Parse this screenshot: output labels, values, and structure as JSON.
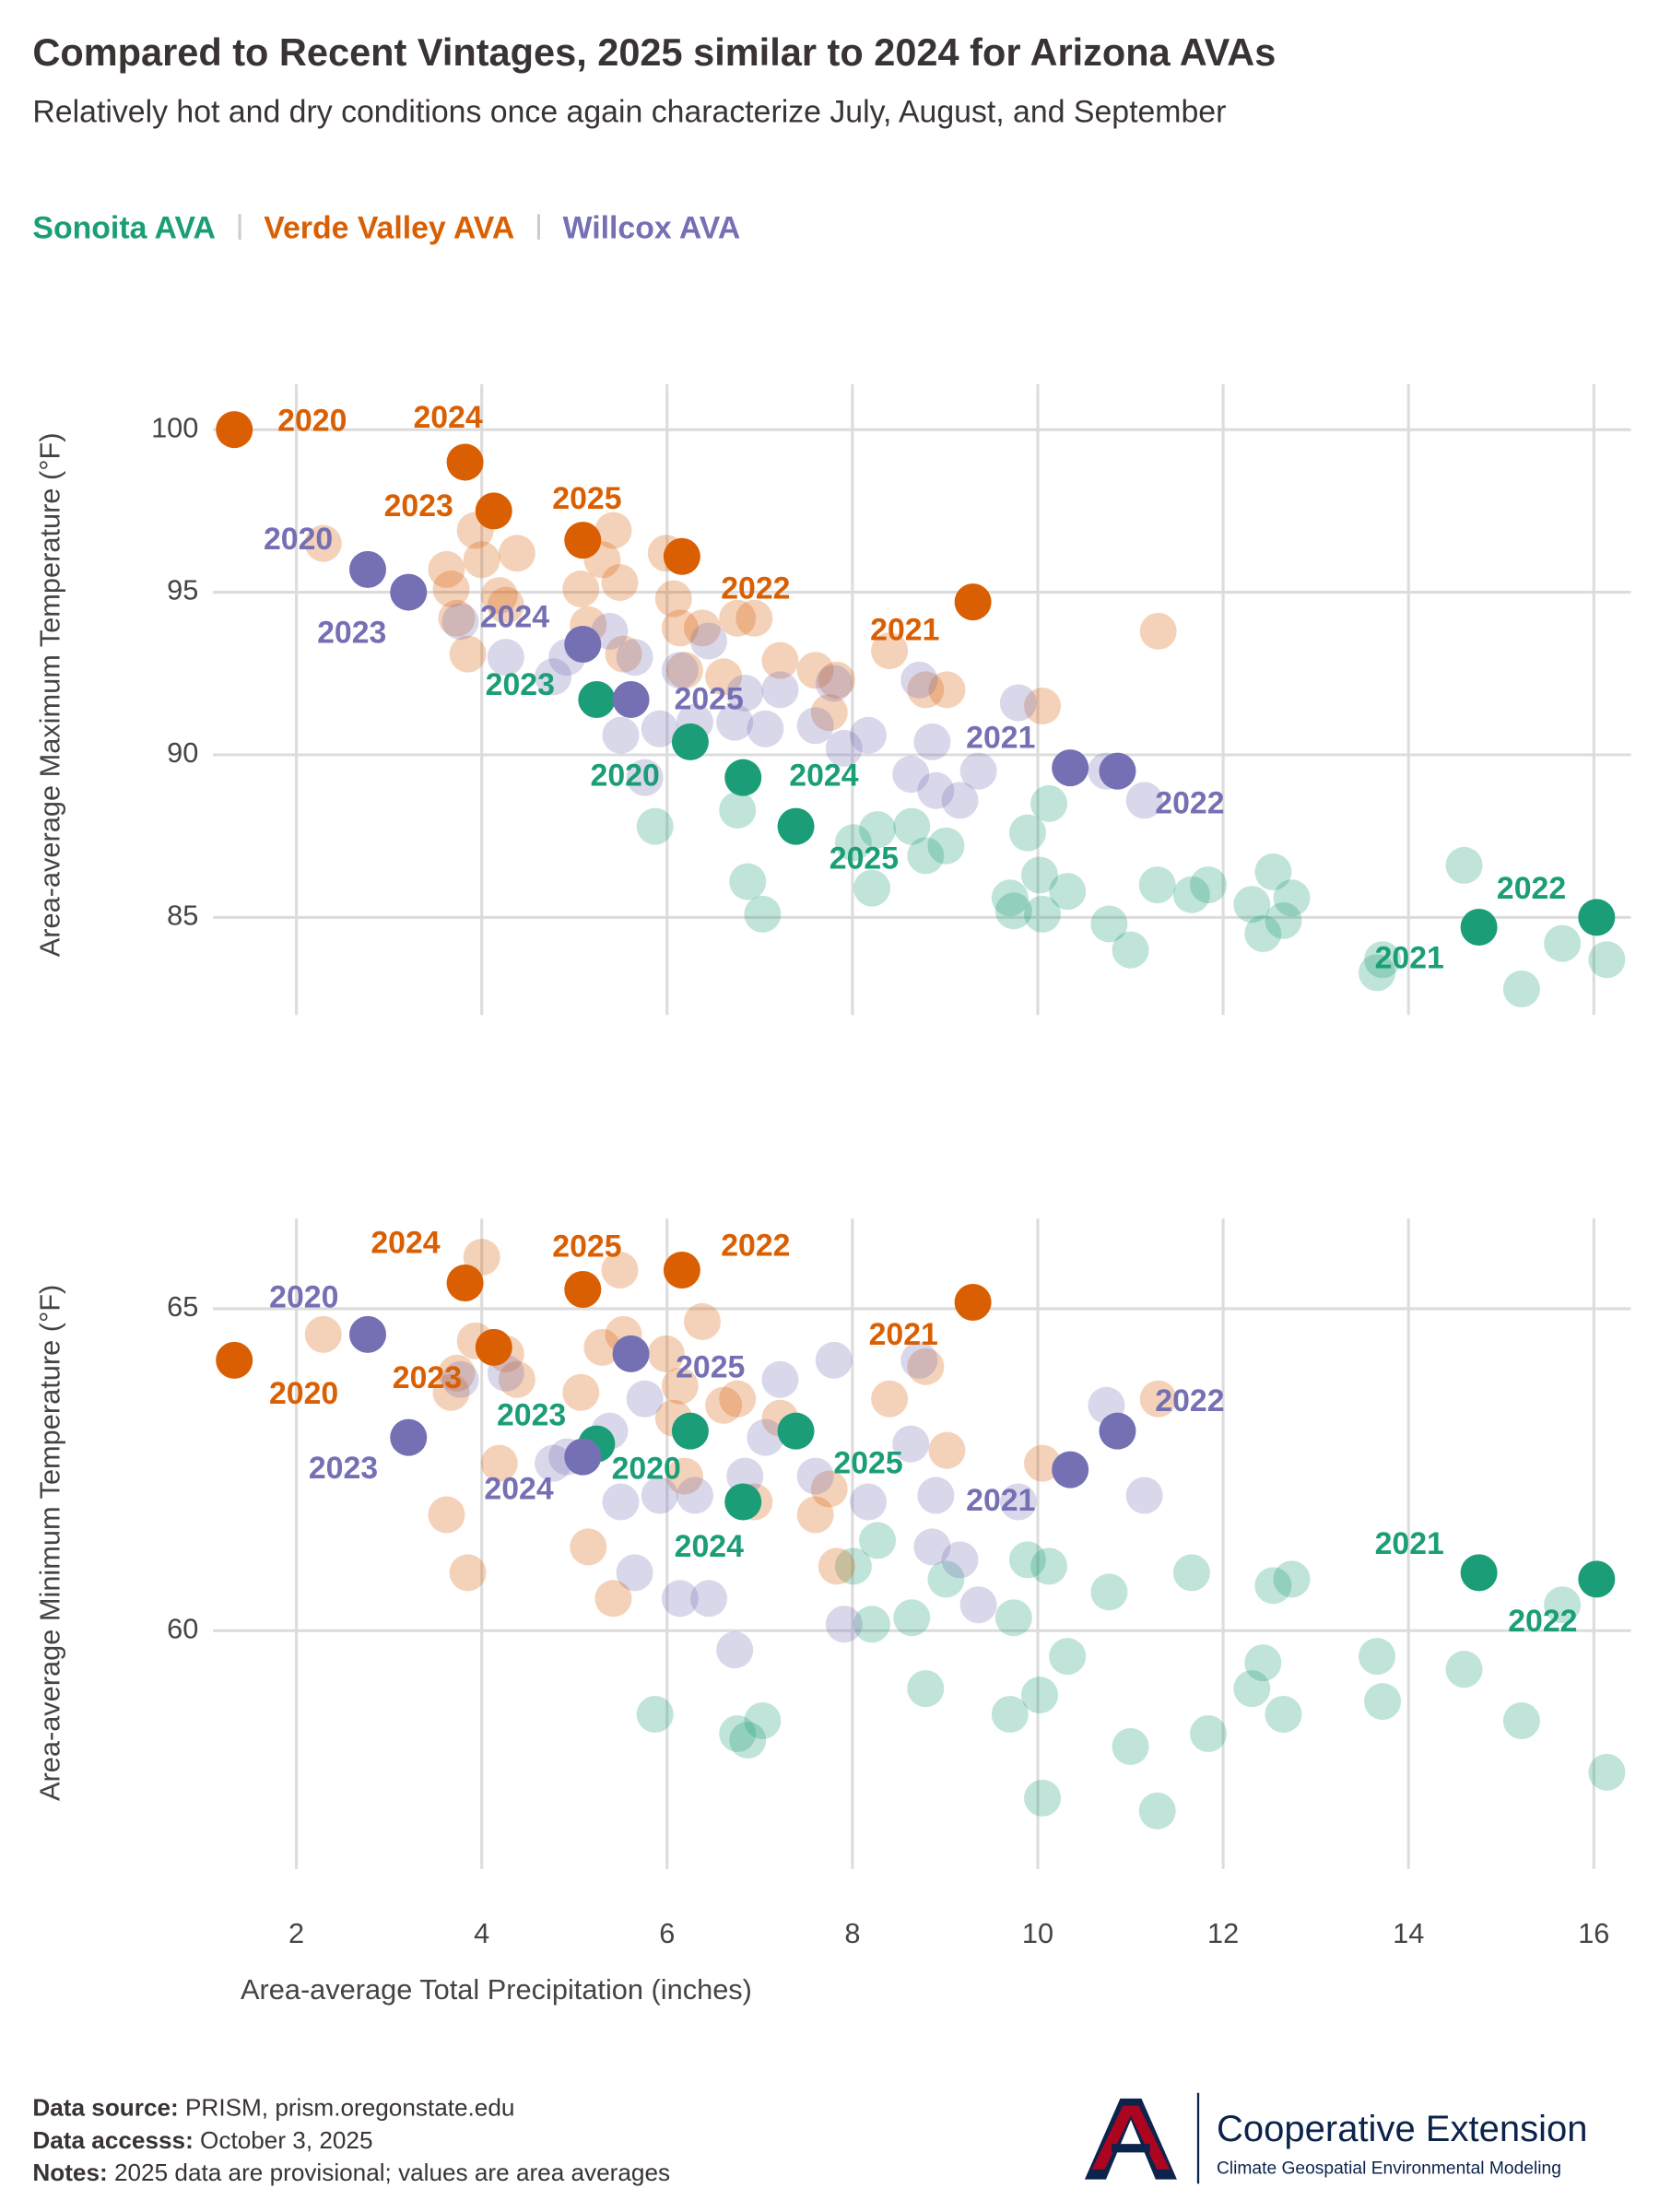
{
  "chart_data": [
    {
      "type": "scatter",
      "title": "Compared to Recent Vintages, 2025 similar to 2024 for Arizona AVAs",
      "subtitle": "Relatively hot and dry conditions once again characterize July, August, and September",
      "ylabel": "Area-average Maximum Temperature (°F)",
      "xlim": [
        1.1,
        16.4
      ],
      "xticks": [
        2,
        4,
        6,
        8,
        10,
        12,
        14,
        16
      ],
      "ylim": [
        82,
        101.4
      ],
      "yticks": [
        85,
        90,
        95,
        100
      ],
      "grid": true,
      "series": [
        {
          "name": "Sonoita AVA",
          "color": "#1b9e77",
          "x": [
            6.25,
            14.76,
            16.03,
            5.24,
            6.82,
            7.39,
            5.87,
            6.76,
            6.87,
            7.03,
            8.01,
            8.21,
            8.27,
            8.64,
            8.79,
            9.01,
            9.7,
            9.74,
            9.89,
            10.02,
            10.05,
            10.12,
            10.32,
            10.77,
            11.0,
            11.29,
            11.66,
            11.84,
            12.31,
            12.43,
            12.54,
            12.65,
            12.74,
            13.66,
            13.72,
            14.6,
            15.22,
            15.66,
            16.14
          ],
          "values": [
            90.4,
            84.7,
            85.0,
            91.7,
            89.3,
            87.8,
            87.8,
            88.3,
            86.1,
            85.1,
            87.3,
            85.9,
            87.7,
            87.8,
            86.9,
            87.2,
            85.6,
            85.2,
            87.6,
            86.3,
            85.1,
            88.5,
            85.8,
            84.8,
            84.0,
            86.0,
            85.7,
            86.0,
            85.4,
            84.5,
            86.4,
            84.9,
            85.6,
            83.3,
            83.7,
            86.6,
            82.8,
            84.2,
            83.7
          ],
          "point_labels": [
            "2020",
            "2021",
            "2022",
            "2023",
            "2024",
            "2025",
            null,
            null,
            null,
            null,
            null,
            null,
            null,
            null,
            null,
            null,
            null,
            null,
            null,
            null,
            null,
            null,
            null,
            null,
            null,
            null,
            null,
            null,
            null,
            null,
            null,
            null,
            null,
            null,
            null,
            null,
            null,
            null,
            null
          ]
        },
        {
          "name": "Verde Valley AVA",
          "color": "#d95f02",
          "x": [
            1.33,
            9.3,
            6.16,
            4.13,
            3.82,
            5.09,
            2.29,
            3.62,
            3.67,
            3.73,
            3.85,
            3.93,
            4.0,
            4.19,
            4.26,
            4.38,
            5.07,
            5.15,
            5.3,
            5.42,
            5.49,
            5.53,
            5.99,
            6.07,
            6.14,
            6.19,
            6.38,
            6.61,
            6.76,
            6.94,
            7.22,
            7.6,
            7.75,
            7.83,
            8.4,
            8.79,
            9.02,
            10.05,
            11.3
          ],
          "values": [
            100.0,
            94.7,
            96.1,
            97.5,
            99.0,
            96.6,
            96.5,
            95.7,
            95.1,
            94.2,
            93.1,
            96.9,
            96.0,
            94.9,
            94.6,
            96.2,
            95.1,
            94.0,
            96.0,
            96.9,
            95.3,
            93.1,
            96.2,
            94.8,
            93.9,
            92.6,
            93.9,
            92.4,
            94.2,
            94.2,
            92.9,
            92.6,
            91.3,
            92.3,
            93.2,
            92.0,
            92.0,
            91.5,
            93.8
          ],
          "point_labels": [
            "2020",
            "2021",
            "2022",
            "2023",
            "2024",
            "2025",
            null,
            null,
            null,
            null,
            null,
            null,
            null,
            null,
            null,
            null,
            null,
            null,
            null,
            null,
            null,
            null,
            null,
            null,
            null,
            null,
            null,
            null,
            null,
            null,
            null,
            null,
            null,
            null,
            null,
            null,
            null,
            null,
            null
          ]
        },
        {
          "name": "Willcox AVA",
          "color": "#7570b3",
          "x": [
            2.77,
            10.35,
            10.86,
            3.21,
            5.09,
            5.61,
            3.77,
            4.26,
            4.77,
            4.92,
            5.38,
            5.5,
            5.65,
            5.76,
            5.92,
            6.14,
            6.3,
            6.45,
            6.73,
            6.84,
            7.06,
            7.22,
            7.6,
            7.8,
            7.91,
            8.17,
            8.63,
            8.72,
            8.86,
            8.9,
            9.16,
            9.36,
            9.79,
            10.74,
            11.15
          ],
          "values": [
            95.7,
            89.6,
            89.5,
            95.0,
            93.4,
            91.7,
            94.1,
            93.0,
            92.4,
            93.0,
            93.8,
            90.6,
            93.0,
            89.3,
            90.8,
            92.6,
            91.0,
            93.5,
            91.0,
            91.9,
            90.8,
            92.0,
            90.9,
            92.2,
            90.2,
            90.6,
            89.4,
            92.3,
            90.4,
            88.9,
            88.6,
            89.5,
            91.6,
            89.5,
            88.6
          ],
          "point_labels": [
            "2020",
            "2021",
            "2022",
            "2023",
            "2024",
            "2025",
            null,
            null,
            null,
            null,
            null,
            null,
            null,
            null,
            null,
            null,
            null,
            null,
            null,
            null,
            null,
            null,
            null,
            null,
            null,
            null,
            null,
            null,
            null,
            null,
            null,
            null,
            null,
            null,
            null
          ]
        }
      ]
    },
    {
      "type": "scatter",
      "ylabel": "Area-average Minimum Temperature (°F)",
      "xlabel": "Area-average Total Precipitation (inches)",
      "xlim": [
        1.1,
        16.4
      ],
      "xticks": [
        2,
        4,
        6,
        8,
        10,
        12,
        14,
        16
      ],
      "ylim": [
        56.3,
        66.4
      ],
      "yticks": [
        60,
        65
      ],
      "grid": true,
      "series": [
        {
          "x": [
            6.25,
            14.76,
            16.03,
            5.24,
            6.82,
            7.39,
            5.87,
            6.76,
            6.87,
            7.03,
            8.01,
            8.21,
            8.27,
            8.64,
            8.79,
            9.01,
            9.7,
            9.74,
            9.89,
            10.02,
            10.05,
            10.12,
            10.32,
            10.77,
            11.0,
            11.29,
            11.66,
            11.84,
            12.31,
            12.43,
            12.54,
            12.65,
            12.74,
            13.66,
            13.72,
            14.6,
            15.22,
            15.66,
            16.14
          ],
          "values": [
            63.1,
            60.9,
            60.8,
            62.9,
            62.0,
            63.1,
            58.7,
            58.4,
            58.3,
            58.6,
            61.0,
            60.1,
            61.4,
            60.2,
            59.1,
            60.8,
            58.7,
            60.2,
            61.1,
            59.0,
            57.4,
            61.0,
            59.6,
            60.6,
            58.2,
            57.2,
            60.9,
            58.4,
            59.1,
            59.5,
            60.7,
            58.7,
            60.8,
            59.6,
            58.9,
            59.4,
            58.6,
            60.4,
            57.8
          ],
          "point_labels": [
            "2020",
            "2021",
            "2022",
            "2023",
            "2024",
            "2025",
            null,
            null,
            null,
            null,
            null,
            null,
            null,
            null,
            null,
            null,
            null,
            null,
            null,
            null,
            null,
            null,
            null,
            null,
            null,
            null,
            null,
            null,
            null,
            null,
            null,
            null,
            null,
            null,
            null,
            null,
            null,
            null,
            null
          ]
        },
        {
          "x": [
            1.33,
            9.3,
            6.16,
            4.13,
            3.82,
            5.09,
            2.29,
            3.62,
            3.67,
            3.73,
            3.85,
            3.93,
            4.0,
            4.19,
            4.26,
            4.38,
            5.07,
            5.15,
            5.3,
            5.42,
            5.49,
            5.53,
            5.99,
            6.07,
            6.14,
            6.19,
            6.38,
            6.61,
            6.76,
            6.94,
            7.22,
            7.6,
            7.75,
            7.83,
            8.4,
            8.79,
            9.02,
            10.05,
            11.3
          ],
          "values": [
            64.2,
            65.1,
            65.6,
            64.4,
            65.4,
            65.3,
            64.6,
            61.8,
            63.7,
            64.0,
            60.9,
            64.5,
            65.8,
            62.6,
            64.3,
            63.9,
            63.7,
            61.3,
            64.4,
            60.5,
            65.6,
            64.6,
            64.3,
            63.3,
            63.8,
            62.4,
            64.8,
            63.5,
            63.6,
            62.0,
            63.3,
            61.8,
            62.2,
            61.0,
            63.6,
            64.1,
            62.8,
            62.6,
            63.6
          ],
          "point_labels": [
            "2020",
            "2021",
            "2022",
            "2023",
            "2024",
            "2025",
            null,
            null,
            null,
            null,
            null,
            null,
            null,
            null,
            null,
            null,
            null,
            null,
            null,
            null,
            null,
            null,
            null,
            null,
            null,
            null,
            null,
            null,
            null,
            null,
            null,
            null,
            null,
            null,
            null,
            null,
            null,
            null,
            null
          ]
        },
        {
          "x": [
            2.77,
            10.35,
            10.86,
            3.21,
            5.09,
            5.61,
            3.77,
            4.26,
            4.77,
            4.92,
            5.38,
            5.5,
            5.65,
            5.76,
            5.92,
            6.14,
            6.3,
            6.45,
            6.73,
            6.84,
            7.06,
            7.22,
            7.6,
            7.8,
            7.91,
            8.17,
            8.63,
            8.72,
            8.86,
            8.9,
            9.16,
            9.36,
            9.79,
            10.74,
            11.15
          ],
          "values": [
            64.6,
            62.5,
            63.1,
            63.0,
            62.7,
            64.3,
            63.9,
            64.0,
            62.6,
            62.7,
            63.1,
            62.0,
            60.9,
            63.6,
            62.1,
            60.5,
            62.1,
            60.5,
            59.7,
            62.4,
            63.0,
            63.9,
            62.4,
            64.2,
            60.1,
            62.0,
            62.9,
            64.2,
            61.3,
            62.1,
            61.1,
            60.4,
            62.0,
            63.5,
            62.1
          ],
          "point_labels": [
            "2020",
            "2021",
            "2022",
            "2023",
            "2024",
            "2025",
            null,
            null,
            null,
            null,
            null,
            null,
            null,
            null,
            null,
            null,
            null,
            null,
            null,
            null,
            null,
            null,
            null,
            null,
            null,
            null,
            null,
            null,
            null,
            null,
            null,
            null,
            null,
            null,
            null
          ]
        }
      ]
    }
  ],
  "footer": [
    {
      "label": "Data source:",
      "text": "PRISM, prism.oregonstate.edu"
    },
    {
      "label": "Data accesss:",
      "text": "October 3, 2025"
    },
    {
      "label": "Notes:",
      "text": "2025 data are provisional; values are area averages"
    }
  ],
  "logo": {
    "name": "Cooperative Extension",
    "tagline": "Climate Geospatial Environmental Modeling"
  }
}
